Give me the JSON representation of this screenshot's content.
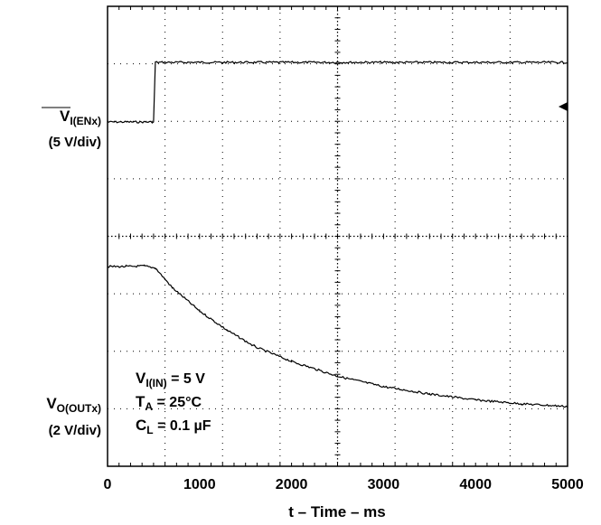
{
  "chart_data": {
    "type": "line",
    "xlabel": "t – Time – ms",
    "xlim": [
      0,
      5000
    ],
    "x_ticks": [
      "0",
      "1000",
      "2000",
      "3000",
      "4000",
      "5000"
    ],
    "grid": true,
    "channels": {
      "enable": {
        "label_main": "V",
        "label_sub": "I(ENx)",
        "label_scale": "(5 V/div)"
      },
      "output": {
        "label_main": "V",
        "label_sub": "O(OUTx)",
        "label_scale": "(2 V/div)"
      }
    },
    "series": [
      {
        "key": "enable",
        "unit": "V",
        "points": [
          [
            0,
            0
          ],
          [
            500,
            0
          ],
          [
            520,
            5
          ],
          [
            5000,
            5
          ]
        ]
      },
      {
        "key": "output",
        "unit": "V",
        "points": [
          [
            0,
            5
          ],
          [
            200,
            5
          ],
          [
            400,
            5.02
          ],
          [
            520,
            4.95
          ],
          [
            700,
            4.3
          ],
          [
            1000,
            3.5
          ],
          [
            1300,
            2.85
          ],
          [
            1600,
            2.3
          ],
          [
            2000,
            1.8
          ],
          [
            2500,
            1.3
          ],
          [
            3000,
            0.95
          ],
          [
            3500,
            0.7
          ],
          [
            4000,
            0.5
          ],
          [
            4500,
            0.37
          ],
          [
            5000,
            0.28
          ]
        ]
      }
    ],
    "annotations": {
      "line1": {
        "main": "V",
        "sub": "I(IN)",
        "rest": " = 5 V"
      },
      "line2": {
        "main": "T",
        "sub": "A",
        "rest": " = 25°C"
      },
      "line3": {
        "main": "C",
        "sub": "L",
        "rest": " = 0.1 µF"
      }
    }
  }
}
